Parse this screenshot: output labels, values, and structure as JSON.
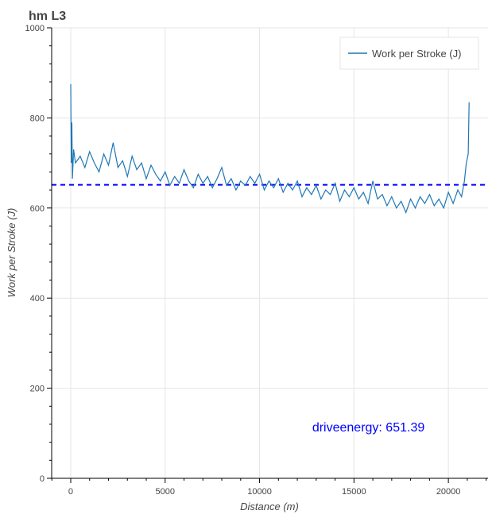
{
  "chart_data": {
    "type": "line",
    "title": "hm L3",
    "xlabel": "Distance (m)",
    "ylabel": "Work per Stroke (J)",
    "xlim": [
      -1010,
      22100
    ],
    "ylim": [
      0,
      1000
    ],
    "xticks": [
      0,
      5000,
      10000,
      15000,
      20000
    ],
    "yticks": [
      0,
      200,
      400,
      600,
      800,
      1000
    ],
    "grid": true,
    "legend_position": "top-right",
    "series": [
      {
        "name": "Work per Stroke (J)",
        "color": "#1f77b4",
        "points": [
          [
            0,
            875
          ],
          [
            30,
            700
          ],
          [
            60,
            790
          ],
          [
            90,
            665
          ],
          [
            150,
            730
          ],
          [
            250,
            700
          ],
          [
            500,
            715
          ],
          [
            750,
            690
          ],
          [
            1000,
            725
          ],
          [
            1250,
            700
          ],
          [
            1500,
            680
          ],
          [
            1750,
            720
          ],
          [
            2000,
            695
          ],
          [
            2250,
            745
          ],
          [
            2500,
            690
          ],
          [
            2750,
            705
          ],
          [
            3000,
            670
          ],
          [
            3250,
            715
          ],
          [
            3500,
            685
          ],
          [
            3750,
            700
          ],
          [
            4000,
            665
          ],
          [
            4250,
            695
          ],
          [
            4500,
            675
          ],
          [
            4750,
            660
          ],
          [
            5000,
            680
          ],
          [
            5250,
            650
          ],
          [
            5500,
            670
          ],
          [
            5750,
            655
          ],
          [
            6000,
            685
          ],
          [
            6250,
            660
          ],
          [
            6500,
            645
          ],
          [
            6750,
            675
          ],
          [
            7000,
            655
          ],
          [
            7250,
            670
          ],
          [
            7500,
            645
          ],
          [
            7750,
            665
          ],
          [
            8000,
            690
          ],
          [
            8250,
            650
          ],
          [
            8500,
            665
          ],
          [
            8750,
            640
          ],
          [
            9000,
            660
          ],
          [
            9250,
            650
          ],
          [
            9500,
            670
          ],
          [
            9750,
            655
          ],
          [
            10000,
            675
          ],
          [
            10250,
            640
          ],
          [
            10500,
            660
          ],
          [
            10750,
            645
          ],
          [
            11000,
            665
          ],
          [
            11250,
            635
          ],
          [
            11500,
            655
          ],
          [
            11750,
            640
          ],
          [
            12000,
            660
          ],
          [
            12250,
            625
          ],
          [
            12500,
            645
          ],
          [
            12750,
            630
          ],
          [
            13000,
            650
          ],
          [
            13250,
            620
          ],
          [
            13500,
            640
          ],
          [
            13750,
            630
          ],
          [
            14000,
            655
          ],
          [
            14250,
            615
          ],
          [
            14500,
            640
          ],
          [
            14750,
            625
          ],
          [
            15000,
            645
          ],
          [
            15250,
            620
          ],
          [
            15500,
            635
          ],
          [
            15750,
            610
          ],
          [
            16000,
            660
          ],
          [
            16250,
            620
          ],
          [
            16500,
            630
          ],
          [
            16750,
            605
          ],
          [
            17000,
            625
          ],
          [
            17250,
            600
          ],
          [
            17500,
            615
          ],
          [
            17750,
            590
          ],
          [
            18000,
            620
          ],
          [
            18250,
            600
          ],
          [
            18500,
            625
          ],
          [
            18750,
            610
          ],
          [
            19000,
            630
          ],
          [
            19250,
            605
          ],
          [
            19500,
            620
          ],
          [
            19750,
            600
          ],
          [
            20000,
            635
          ],
          [
            20250,
            610
          ],
          [
            20500,
            640
          ],
          [
            20700,
            625
          ],
          [
            20850,
            660
          ],
          [
            20950,
            700
          ],
          [
            21050,
            720
          ],
          [
            21100,
            835
          ]
        ]
      }
    ],
    "hline": {
      "value": 651.39,
      "color": "#0000ff",
      "style": "dashed"
    },
    "annotation": {
      "text": "driveenergy: 651.39",
      "x": 13000,
      "y": 115,
      "color": "#0000ff"
    }
  }
}
